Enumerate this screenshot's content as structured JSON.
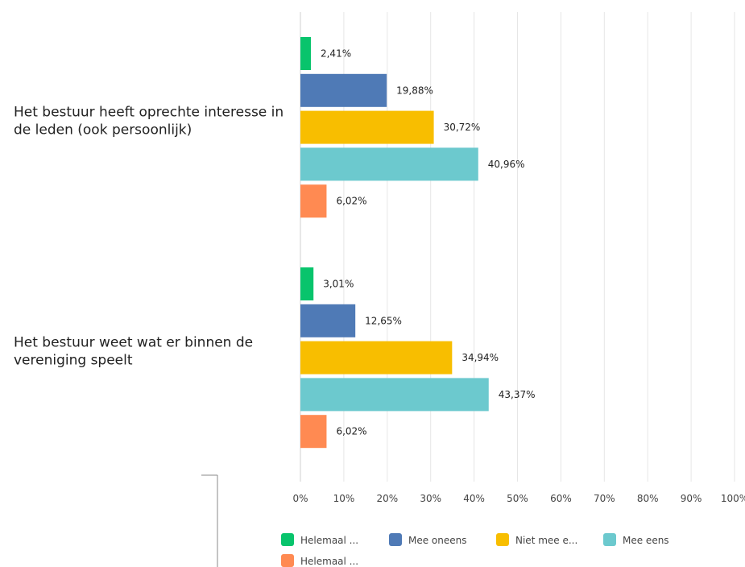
{
  "chart_data": {
    "type": "bar",
    "orientation": "horizontal",
    "categories": [
      "Het bestuur heeft oprechte interesse in de leden (ook persoonlijk)",
      "Het bestuur weet wat er binnen de vereniging speelt"
    ],
    "category_lines": [
      [
        "Het bestuur heeft oprechte interesse in",
        "de leden (ook persoonlijk)"
      ],
      [
        "Het bestuur weet wat er binnen de",
        "vereniging speelt"
      ]
    ],
    "series": [
      {
        "name": "Helemaal ...",
        "color": "#08c46c",
        "values": [
          2.41,
          3.01
        ],
        "labels": [
          "2,41%",
          "3,01%"
        ]
      },
      {
        "name": "Mee oneens",
        "color": "#4f7ab6",
        "values": [
          19.88,
          12.65
        ],
        "labels": [
          "19,88%",
          "12,65%"
        ]
      },
      {
        "name": "Niet mee e...",
        "color": "#f8be00",
        "values": [
          30.72,
          34.94
        ],
        "labels": [
          "30,72%",
          "34,94%"
        ]
      },
      {
        "name": "Mee eens",
        "color": "#6cc9ce",
        "values": [
          40.96,
          43.37
        ],
        "labels": [
          "40,96%",
          "43,37%"
        ]
      },
      {
        "name": "Helemaal ...",
        "color": "#ff8a52",
        "values": [
          6.02,
          6.02
        ],
        "labels": [
          "6,02%",
          "6,02%"
        ]
      }
    ],
    "xlim": [
      0,
      100
    ],
    "x_ticks": [
      "0%",
      "10%",
      "20%",
      "30%",
      "40%",
      "50%",
      "60%",
      "70%",
      "80%",
      "90%",
      "100%"
    ],
    "grid": true,
    "legend_position": "bottom"
  }
}
